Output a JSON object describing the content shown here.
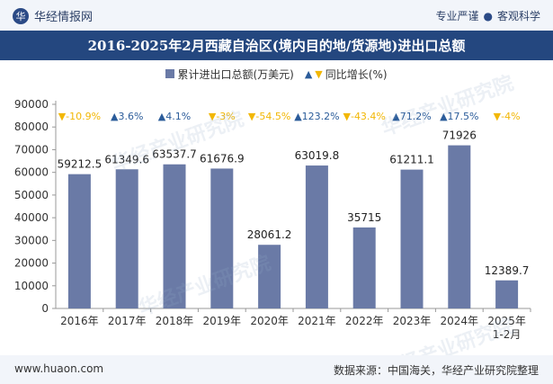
{
  "header": {
    "brand_name": "华经情报网",
    "logo_glyph": "华",
    "slogan_left": "专业严谨",
    "slogan_right": "客观科学"
  },
  "title": "2016-2025年2月西藏自治区(境内目的地/货源地)进出口总额",
  "footer": {
    "url": "www.huaon.com",
    "source": "数据来源：中国海关，华经产业研究院整理"
  },
  "watermark": "华经产业研究院",
  "colors": {
    "bar": "#6a7aa6",
    "up": "#2b5c9a",
    "down": "#f2b705",
    "title_bg": "#24477f"
  },
  "chart_data": {
    "type": "bar",
    "categories": [
      "2016年",
      "2017年",
      "2018年",
      "2019年",
      "2020年",
      "2021年",
      "2022年",
      "2023年",
      "2024年",
      "2025年\n1-2月"
    ],
    "series": [
      {
        "name": "累计进出口总额(万美元)",
        "values": [
          59212.5,
          61349.6,
          63537.7,
          61676.9,
          28061.2,
          63019.8,
          35715,
          61211.1,
          71926,
          12389.7
        ],
        "labels": [
          "59212.5",
          "61349.6",
          "63537.7",
          "61676.9",
          "28061.2",
          "63019.8",
          "35715",
          "61211.1",
          "71926",
          "12389.7"
        ]
      },
      {
        "name": "同比增长(%)",
        "values": [
          -10.9,
          3.6,
          4.1,
          -3,
          -54.5,
          123.2,
          -43.4,
          71.2,
          17.5,
          -4
        ],
        "labels": [
          "-10.9%",
          "3.6%",
          "4.1%",
          "-3%",
          "-54.5%",
          "123.2%",
          "-43.4%",
          "71.2%",
          "17.5%",
          "-4%"
        ]
      }
    ],
    "yticks": [
      "0",
      "10000",
      "20000",
      "30000",
      "40000",
      "50000",
      "60000",
      "70000",
      "80000",
      "90000"
    ],
    "ylim": [
      0,
      90000
    ],
    "legend_position": "top-center",
    "grid": false
  }
}
